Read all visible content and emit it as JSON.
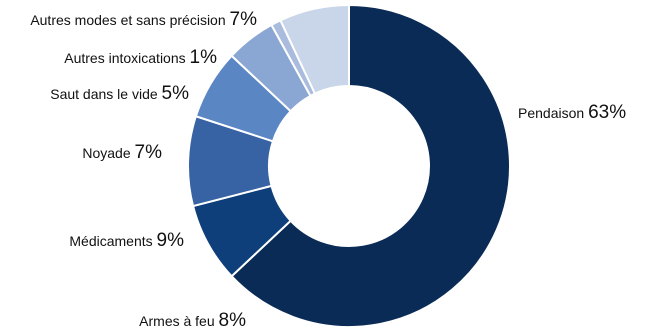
{
  "chart_data": {
    "type": "pie",
    "title": "",
    "categories": [
      "Pendaison",
      "Armes à feu",
      "Médicaments",
      "Noyade",
      "Saut dans le vide",
      "Autres intoxications",
      "Autres modes et sans précision"
    ],
    "values": [
      63,
      8,
      9,
      7,
      5,
      1,
      7
    ],
    "value_labels": [
      "63%",
      "8%",
      "9%",
      "7%",
      "5%",
      "1%",
      "7%"
    ],
    "colors": [
      "#0b2b57",
      "#0e3f7a",
      "#3763a4",
      "#5a86c4",
      "#8aa6d2",
      "#a9bcdd",
      "#c9d5e8"
    ],
    "legend": "none"
  }
}
